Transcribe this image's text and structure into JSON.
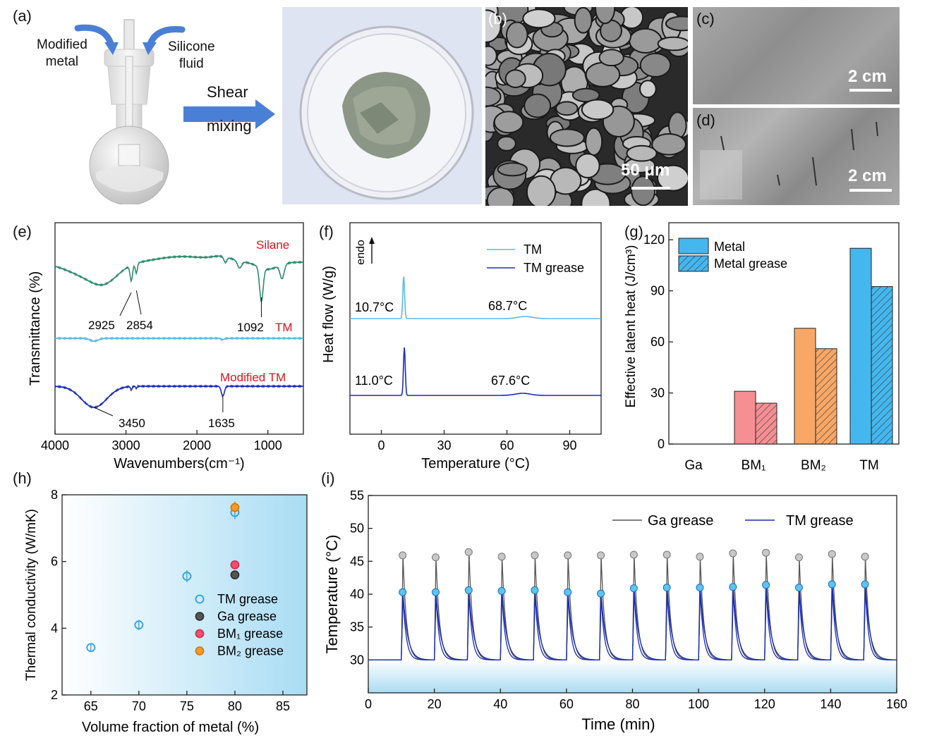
{
  "panel_a": {
    "label": "(a)",
    "modified_metal": "Modified\nmetal",
    "silicone_fluid": "Silicone\nfluid",
    "shear": "Shear",
    "mixing": "mixing"
  },
  "panel_b": {
    "label": "(b)",
    "scale": "50 μm"
  },
  "panel_c": {
    "label": "(c)",
    "scale": "2 cm"
  },
  "panel_d": {
    "label": "(d)",
    "scale": "2 cm"
  },
  "colors": {
    "silane": "#2e8b6a",
    "tm": "#5bb8e8",
    "modified_tm": "#1b2db5",
    "red_label": "#d9141b",
    "ga": "#555555",
    "bm1": "#f58f93",
    "bm2": "#f8a766",
    "tm_bar": "#45b7ef"
  },
  "chart_data": [
    {
      "panel": "(e)",
      "type": "line",
      "xlabel": "Wavenumbers(cm⁻¹)",
      "ylabel": "Transmittance (%)",
      "xlim": [
        4000,
        500
      ],
      "xticks": [
        "4000",
        "3000",
        "2000",
        "1000"
      ],
      "series": [
        {
          "name": "Silane",
          "color": "#2e8b6a"
        },
        {
          "name": "TM",
          "color": "#5bb8e8"
        },
        {
          "name": "Modified TM",
          "color": "#1b2db5"
        }
      ],
      "annotations": [
        "2925",
        "2854",
        "1092",
        "3450",
        "1635"
      ]
    },
    {
      "panel": "(f)",
      "type": "line",
      "xlabel": "Temperature (°C)",
      "ylabel": "Heat flow (W/g)",
      "endo": "endo",
      "xlim": [
        -15,
        105
      ],
      "xticks": [
        "0",
        "30",
        "60",
        "90"
      ],
      "series": [
        {
          "name": "TM",
          "color": "#5bb8e8",
          "peaks": [
            10.7,
            68.7
          ]
        },
        {
          "name": "TM grease",
          "color": "#1b2db5",
          "peaks": [
            11.0,
            67.6
          ]
        }
      ],
      "annotations": [
        "10.7°C",
        "68.7°C",
        "11.0°C",
        "67.6°C"
      ]
    },
    {
      "panel": "(g)",
      "type": "bar",
      "xlabel": "",
      "ylabel": "Effective latent heat (J/cm³)",
      "ylim": [
        0,
        130
      ],
      "yticks": [
        "0",
        "30",
        "60",
        "90",
        "120"
      ],
      "categories": [
        "Ga",
        "BM₁",
        "BM₂",
        "TM"
      ],
      "series": [
        {
          "name": "Metal",
          "values": [
            0,
            31,
            68,
            115
          ]
        },
        {
          "name": "Metal grease",
          "values": [
            0,
            24,
            56,
            92.5
          ]
        }
      ]
    },
    {
      "panel": "(h)",
      "type": "scatter",
      "xlabel": "Volume fraction of metal (%)",
      "ylabel": "Thermal conductivity (W/mK)",
      "xlim": [
        62,
        87.5
      ],
      "ylim": [
        2,
        8
      ],
      "xticks": [
        "65",
        "70",
        "75",
        "80",
        "85"
      ],
      "yticks": [
        "2",
        "4",
        "6",
        "8"
      ],
      "series": [
        {
          "name": "TM grease",
          "points": [
            [
              65,
              3.42,
              0.1
            ],
            [
              70,
              4.1,
              0.15
            ],
            [
              75,
              5.56,
              0.18
            ],
            [
              80,
              7.47,
              0.2
            ]
          ]
        },
        {
          "name": "Ga grease",
          "points": [
            [
              80,
              5.6,
              0.12
            ]
          ]
        },
        {
          "name": "BM₁ grease",
          "points": [
            [
              80,
              5.9,
              0.12
            ]
          ]
        },
        {
          "name": "BM₂ grease",
          "points": [
            [
              80,
              7.62,
              0.18
            ]
          ]
        }
      ]
    },
    {
      "panel": "(i)",
      "type": "line",
      "xlabel": "Time (min)",
      "ylabel": "Temperature (°C)",
      "xlim": [
        0,
        160
      ],
      "ylim": [
        25,
        55
      ],
      "xticks": [
        "0",
        "20",
        "40",
        "60",
        "80",
        "100",
        "120",
        "140",
        "160"
      ],
      "yticks": [
        "30",
        "35",
        "40",
        "45",
        "50",
        "55"
      ],
      "baseline": 30,
      "pulse_times": [
        10,
        20,
        30,
        40,
        50,
        60,
        70,
        80,
        90,
        100,
        110,
        120,
        130,
        140,
        150
      ],
      "series": [
        {
          "name": "Ga grease",
          "peaks": [
            45.9,
            45.6,
            46.4,
            45.7,
            45.9,
            45.9,
            45.9,
            46.0,
            46.0,
            45.7,
            46.2,
            46.3,
            45.6,
            46.1,
            45.7
          ]
        },
        {
          "name": "TM grease",
          "peaks": [
            40.3,
            40.3,
            40.6,
            40.5,
            40.6,
            40.3,
            40.1,
            40.9,
            41.0,
            41.0,
            41.1,
            41.4,
            41.0,
            41.5,
            41.5
          ]
        }
      ]
    }
  ]
}
